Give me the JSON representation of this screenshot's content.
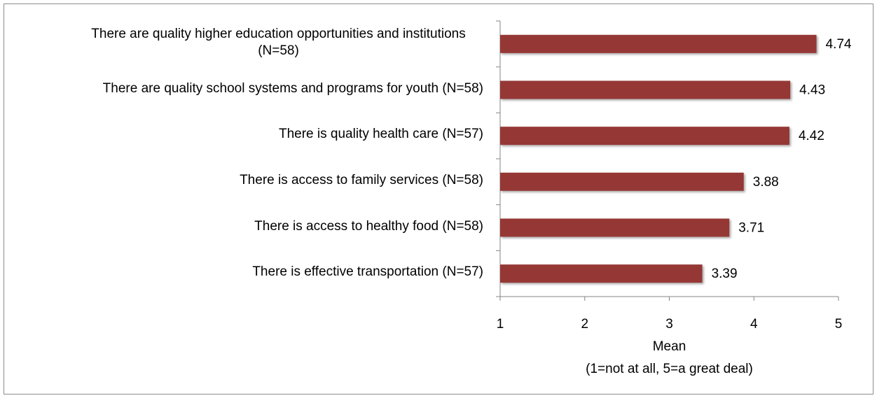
{
  "chart_data": {
    "type": "bar",
    "orientation": "horizontal",
    "categories": [
      "There are quality higher education opportunities and institutions (N=58)",
      "There are quality school systems and programs for youth (N=58)",
      "There is quality health care (N=57)",
      "There is access to family services (N=58)",
      "There is access to healthy food (N=58)",
      "There is effective transportation (N=57)"
    ],
    "values": [
      4.74,
      4.43,
      4.42,
      3.88,
      3.71,
      3.39
    ],
    "color": "#953735",
    "xlim": [
      1,
      5
    ],
    "xticks": [
      1,
      2,
      3,
      4,
      5
    ],
    "x_label": [
      "Mean",
      "(1=not at all, 5=a great deal)"
    ],
    "grid": false
  }
}
